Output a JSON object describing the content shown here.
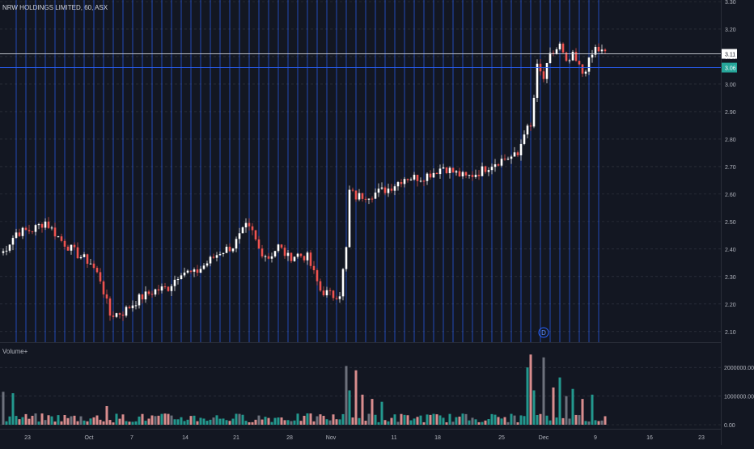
{
  "chart_data": {
    "type": "candlestick",
    "title": "NRW HOLDINGS LIMITED, 60, ASX",
    "price_axis": {
      "range": [
        2.07,
        3.3
      ],
      "ticks": [
        3.3,
        3.2,
        3.1,
        3.0,
        2.9,
        2.8,
        2.7,
        2.6,
        2.5,
        2.4,
        2.3,
        2.2,
        2.1
      ]
    },
    "price_lines": [
      {
        "value": 3.11,
        "label": "3.11",
        "color": "#ffffff"
      },
      {
        "value": 3.06,
        "label": "3.06",
        "color": "#26a69a"
      }
    ],
    "x_labels": [
      "23",
      "Oct",
      "7",
      "14",
      "21",
      "28",
      "Nov",
      "11",
      "18",
      "25",
      "Dec",
      "9",
      "16",
      "23"
    ],
    "price_path": [
      {
        "x": 1,
        "y": 2.39
      },
      {
        "x": 5,
        "y": 2.46
      },
      {
        "x": 10,
        "y": 2.47
      },
      {
        "x": 14,
        "y": 2.5
      },
      {
        "x": 19,
        "y": 2.43
      },
      {
        "x": 24,
        "y": 2.38
      },
      {
        "x": 28,
        "y": 2.35
      },
      {
        "x": 31,
        "y": 2.29
      },
      {
        "x": 34,
        "y": 2.16
      },
      {
        "x": 38,
        "y": 2.17
      },
      {
        "x": 43,
        "y": 2.22
      },
      {
        "x": 48,
        "y": 2.25
      },
      {
        "x": 52,
        "y": 2.26
      },
      {
        "x": 56,
        "y": 2.32
      },
      {
        "x": 60,
        "y": 2.31
      },
      {
        "x": 64,
        "y": 2.35
      },
      {
        "x": 68,
        "y": 2.39
      },
      {
        "x": 72,
        "y": 2.41
      },
      {
        "x": 76,
        "y": 2.48
      },
      {
        "x": 78,
        "y": 2.46
      },
      {
        "x": 80,
        "y": 2.4
      },
      {
        "x": 83,
        "y": 2.37
      },
      {
        "x": 86,
        "y": 2.41
      },
      {
        "x": 89,
        "y": 2.37
      },
      {
        "x": 92,
        "y": 2.38
      },
      {
        "x": 95,
        "y": 2.37
      },
      {
        "x": 99,
        "y": 2.25
      },
      {
        "x": 103,
        "y": 2.23
      },
      {
        "x": 105,
        "y": 2.24
      },
      {
        "x": 107,
        "y": 2.4
      },
      {
        "x": 108,
        "y": 2.61
      },
      {
        "x": 110,
        "y": 2.59
      },
      {
        "x": 115,
        "y": 2.6
      },
      {
        "x": 120,
        "y": 2.62
      },
      {
        "x": 125,
        "y": 2.66
      },
      {
        "x": 130,
        "y": 2.66
      },
      {
        "x": 134,
        "y": 2.68
      },
      {
        "x": 137,
        "y": 2.7
      },
      {
        "x": 140,
        "y": 2.68
      },
      {
        "x": 144,
        "y": 2.66
      },
      {
        "x": 148,
        "y": 2.68
      },
      {
        "x": 152,
        "y": 2.71
      },
      {
        "x": 156,
        "y": 2.73
      },
      {
        "x": 160,
        "y": 2.74
      },
      {
        "x": 162,
        "y": 2.83
      },
      {
        "x": 164,
        "y": 2.84
      },
      {
        "x": 166,
        "y": 3.06
      },
      {
        "x": 168,
        "y": 3.02
      },
      {
        "x": 170,
        "y": 3.1
      },
      {
        "x": 173,
        "y": 3.14
      },
      {
        "x": 175,
        "y": 3.07
      },
      {
        "x": 177,
        "y": 3.1
      },
      {
        "x": 180,
        "y": 3.04
      },
      {
        "x": 182,
        "y": 3.08
      },
      {
        "x": 184,
        "y": 3.13
      },
      {
        "x": 187,
        "y": 3.11
      }
    ],
    "volume": {
      "label": "Volume+",
      "range": [
        0,
        2400000
      ],
      "ticks": [
        {
          "value": 0,
          "label": "0.00"
        },
        {
          "value": 1000000,
          "label": "1000000.00"
        },
        {
          "value": 2000000,
          "label": "2000000.00"
        }
      ],
      "spikes": [
        {
          "x": 1,
          "value": 1150000
        },
        {
          "x": 4,
          "value": 1100000
        },
        {
          "x": 33,
          "value": 650000
        },
        {
          "x": 107,
          "value": 2050000
        },
        {
          "x": 108,
          "value": 1200000
        },
        {
          "x": 110,
          "value": 1900000
        },
        {
          "x": 112,
          "value": 1050000
        },
        {
          "x": 115,
          "value": 900000
        },
        {
          "x": 118,
          "value": 800000
        },
        {
          "x": 163,
          "value": 2000000
        },
        {
          "x": 164,
          "value": 2450000
        },
        {
          "x": 165,
          "value": 1200000
        },
        {
          "x": 168,
          "value": 2350000
        },
        {
          "x": 171,
          "value": 1300000
        },
        {
          "x": 173,
          "value": 1650000
        },
        {
          "x": 175,
          "value": 1000000
        },
        {
          "x": 177,
          "value": 1250000
        },
        {
          "x": 180,
          "value": 900000
        },
        {
          "x": 183,
          "value": 1050000
        }
      ]
    },
    "event_marker": "D",
    "colors": {
      "up": "#ffffff",
      "down": "#ef5350",
      "vol_up": "#26a69a",
      "vol_down": "#ef9a9a",
      "vol_gray": "#787b86",
      "vline": "#2962ff",
      "background": "#131722"
    }
  }
}
